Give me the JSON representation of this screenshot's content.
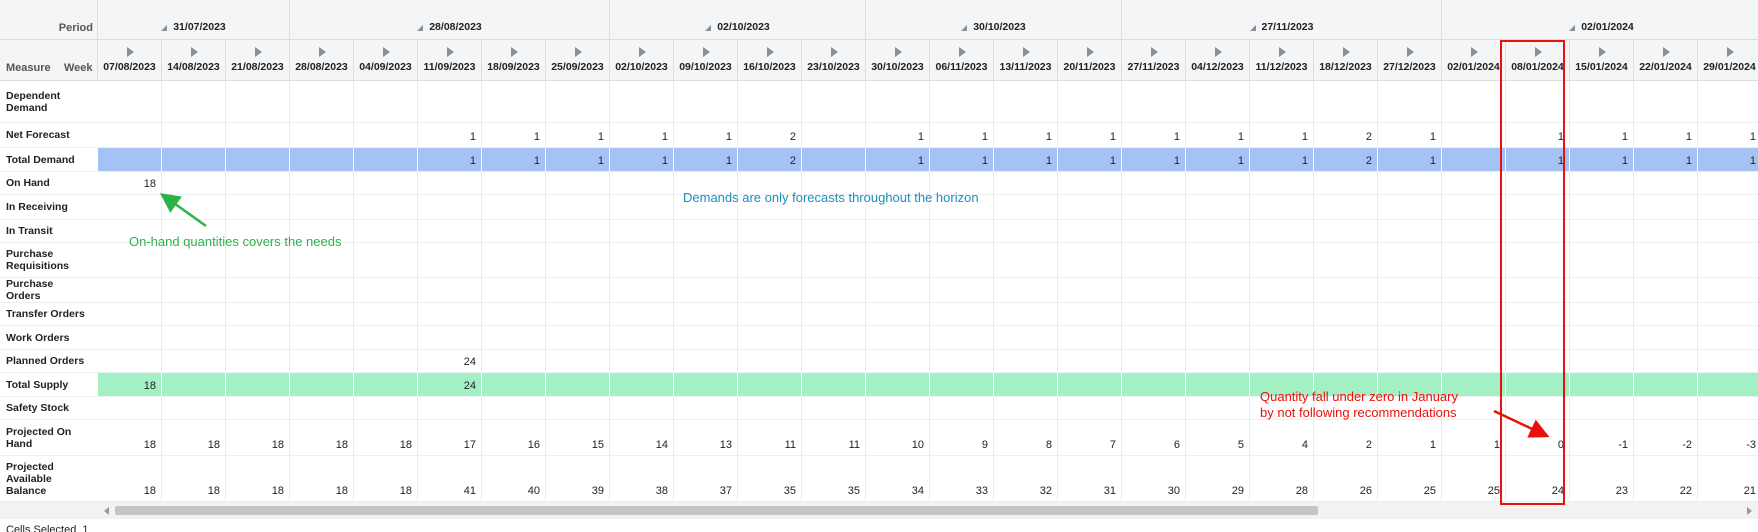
{
  "grid": {
    "header": {
      "period": "Period",
      "measure": "Measure",
      "week": "Week"
    },
    "weeks": [
      "07/08/2023",
      "14/08/2023",
      "21/08/2023",
      "28/08/2023",
      "04/09/2023",
      "11/09/2023",
      "18/09/2023",
      "25/09/2023",
      "02/10/2023",
      "09/10/2023",
      "16/10/2023",
      "23/10/2023",
      "30/10/2023",
      "06/11/2023",
      "13/11/2023",
      "20/11/2023",
      "27/11/2023",
      "04/12/2023",
      "11/12/2023",
      "18/12/2023",
      "27/12/2023",
      "02/01/2024",
      "08/01/2024",
      "15/01/2024",
      "22/01/2024",
      "29/01/2024"
    ],
    "periods": [
      "31/07/2023",
      null,
      null,
      "28/08/2023",
      null,
      null,
      null,
      null,
      "02/10/2023",
      null,
      null,
      null,
      "30/10/2023",
      null,
      null,
      null,
      "27/11/2023",
      null,
      null,
      null,
      null,
      "02/01/2024",
      null,
      null,
      null,
      null
    ],
    "rows": [
      {
        "label": "Dependent Demand",
        "values": [
          null,
          null,
          null,
          null,
          null,
          null,
          null,
          null,
          null,
          null,
          null,
          null,
          null,
          null,
          null,
          null,
          null,
          null,
          null,
          null,
          null,
          null,
          null,
          null,
          null,
          null
        ]
      },
      {
        "label": "Net Forecast",
        "values": [
          null,
          null,
          null,
          null,
          null,
          1,
          1,
          1,
          1,
          1,
          2,
          null,
          1,
          1,
          1,
          1,
          1,
          1,
          1,
          2,
          1,
          null,
          1,
          1,
          1,
          1
        ]
      },
      {
        "label": "Total Demand",
        "color": "#a4c2f4",
        "values": [
          null,
          null,
          null,
          null,
          null,
          1,
          1,
          1,
          1,
          1,
          2,
          null,
          1,
          1,
          1,
          1,
          1,
          1,
          1,
          2,
          1,
          null,
          1,
          1,
          1,
          1
        ]
      },
      {
        "label": "On Hand",
        "values": [
          18,
          null,
          null,
          null,
          null,
          null,
          null,
          null,
          null,
          null,
          null,
          null,
          null,
          null,
          null,
          null,
          null,
          null,
          null,
          null,
          null,
          null,
          null,
          null,
          null,
          null
        ]
      },
      {
        "label": "In Receiving",
        "values": [
          null,
          null,
          null,
          null,
          null,
          null,
          null,
          null,
          null,
          null,
          null,
          null,
          null,
          null,
          null,
          null,
          null,
          null,
          null,
          null,
          null,
          null,
          null,
          null,
          null,
          null
        ]
      },
      {
        "label": "In Transit",
        "values": [
          null,
          null,
          null,
          null,
          null,
          null,
          null,
          null,
          null,
          null,
          null,
          null,
          null,
          null,
          null,
          null,
          null,
          null,
          null,
          null,
          null,
          null,
          null,
          null,
          null,
          null
        ]
      },
      {
        "label": "Purchase Requisitions",
        "values": [
          null,
          null,
          null,
          null,
          null,
          null,
          null,
          null,
          null,
          null,
          null,
          null,
          null,
          null,
          null,
          null,
          null,
          null,
          null,
          null,
          null,
          null,
          null,
          null,
          null,
          null
        ]
      },
      {
        "label": "Purchase Orders",
        "values": [
          null,
          null,
          null,
          null,
          null,
          null,
          null,
          null,
          null,
          null,
          null,
          null,
          null,
          null,
          null,
          null,
          null,
          null,
          null,
          null,
          null,
          null,
          null,
          null,
          null,
          null
        ]
      },
      {
        "label": "Transfer Orders",
        "values": [
          null,
          null,
          null,
          null,
          null,
          null,
          null,
          null,
          null,
          null,
          null,
          null,
          null,
          null,
          null,
          null,
          null,
          null,
          null,
          null,
          null,
          null,
          null,
          null,
          null,
          null
        ]
      },
      {
        "label": "Work Orders",
        "values": [
          null,
          null,
          null,
          null,
          null,
          null,
          null,
          null,
          null,
          null,
          null,
          null,
          null,
          null,
          null,
          null,
          null,
          null,
          null,
          null,
          null,
          null,
          null,
          null,
          null,
          null
        ]
      },
      {
        "label": "Planned Orders",
        "values": [
          null,
          null,
          null,
          null,
          null,
          24,
          null,
          null,
          null,
          null,
          null,
          null,
          null,
          null,
          null,
          null,
          null,
          null,
          null,
          null,
          null,
          null,
          null,
          null,
          null,
          null
        ]
      },
      {
        "label": "Total Supply",
        "color": "#a3f0c4",
        "values": [
          18,
          null,
          null,
          null,
          null,
          24,
          null,
          null,
          null,
          null,
          null,
          null,
          null,
          null,
          null,
          null,
          null,
          null,
          null,
          null,
          null,
          null,
          null,
          null,
          null,
          null
        ]
      },
      {
        "label": "Safety Stock",
        "values": [
          null,
          null,
          null,
          null,
          null,
          null,
          null,
          null,
          null,
          null,
          null,
          null,
          null,
          null,
          null,
          null,
          null,
          null,
          null,
          null,
          null,
          null,
          null,
          null,
          null,
          null
        ]
      },
      {
        "label": "Projected On Hand",
        "values": [
          18,
          18,
          18,
          18,
          18,
          17,
          16,
          15,
          14,
          13,
          11,
          11,
          10,
          9,
          8,
          7,
          6,
          5,
          4,
          2,
          1,
          1,
          0,
          -1,
          -2,
          -3
        ]
      },
      {
        "label": "Projected Available Balance",
        "values": [
          18,
          18,
          18,
          18,
          18,
          41,
          40,
          39,
          38,
          37,
          35,
          35,
          34,
          33,
          32,
          31,
          30,
          29,
          28,
          26,
          25,
          25,
          24,
          23,
          22,
          21
        ]
      }
    ],
    "footer": "Cells Selected  1"
  },
  "annotations": {
    "forecast_note": "Demands are only forecasts throughout the horizon",
    "on_hand_note": "On-hand quantities covers the needs",
    "shortage_note": [
      "Quantity fall under zero in January",
      "by not following recommendations"
    ]
  }
}
